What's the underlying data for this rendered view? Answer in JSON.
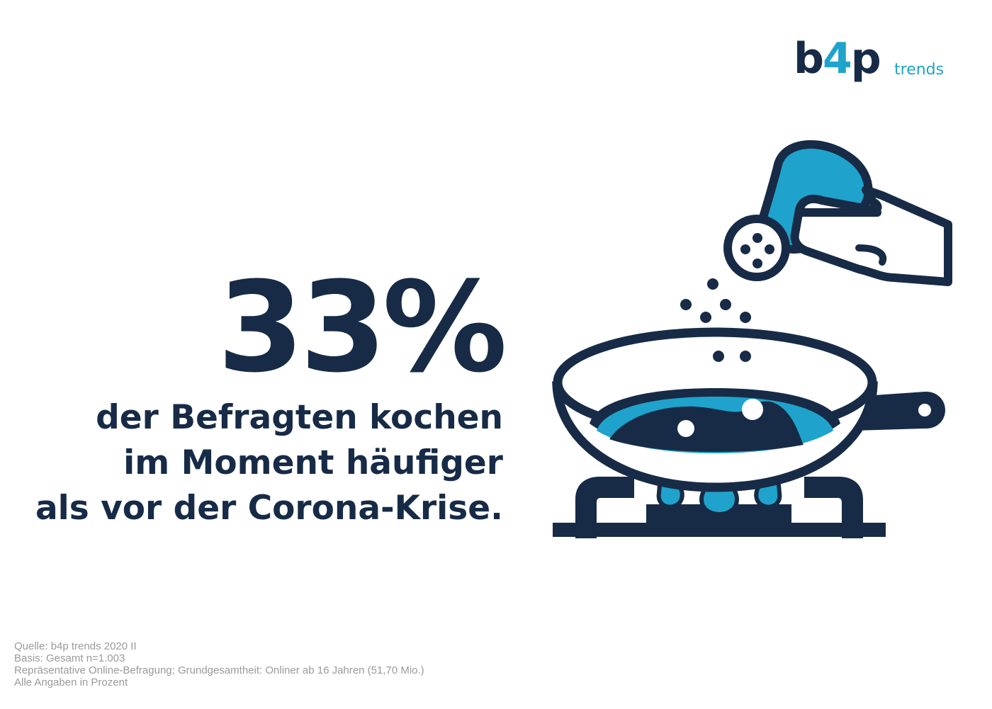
{
  "logo": {
    "mark_b": "b",
    "mark_4": "4",
    "mark_p": "p",
    "word": "trends",
    "colors": {
      "dark": "#172b47",
      "accent": "#1fa3cc"
    }
  },
  "headline": {
    "value": "33%",
    "lines": [
      "der Befragten kochen",
      "im Moment häufiger",
      "als vor der Corona-Krise."
    ]
  },
  "illustration": {
    "icon": "frying-pan-on-stove-with-salt-shaker-icon",
    "colors": {
      "outline": "#172b47",
      "fill": "#1fa3cc",
      "background": "#ffffff"
    }
  },
  "source": {
    "lines": [
      "Quelle: b4p trends 2020 II",
      "Basis: Gesamt n=1.003",
      "Repräsentative Online-Befragung; Grundgesamtheit: Onliner ab 16 Jahren (51,70 Mio.)",
      "Alle Angaben in Prozent"
    ]
  }
}
